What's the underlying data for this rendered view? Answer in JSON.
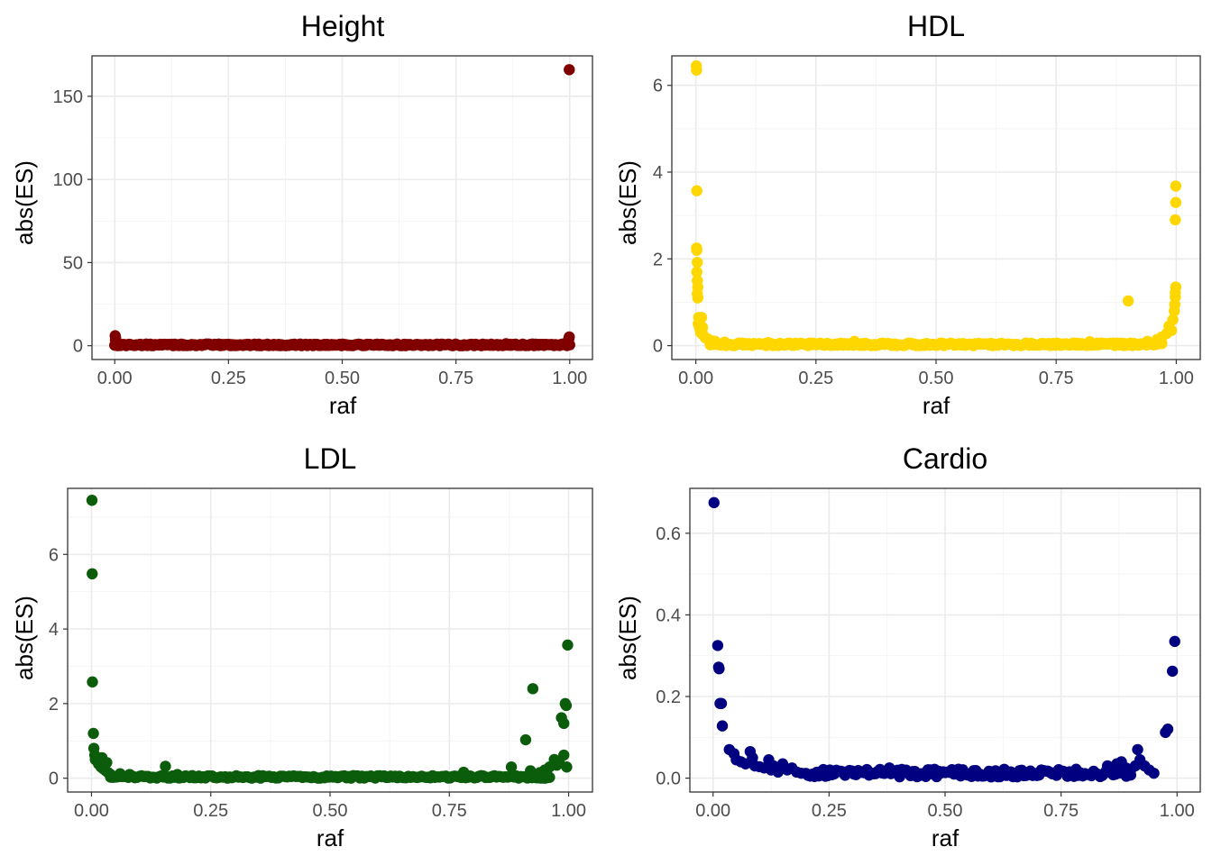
{
  "figure": {
    "xlabel": "raf",
    "ylabel": "abs(ES)"
  },
  "chart_data": [
    {
      "type": "scatter",
      "title": "Height",
      "xlabel": "raf",
      "ylabel": "abs(ES)",
      "color": "#800000",
      "xlim": [
        -0.05,
        1.05
      ],
      "ylim": [
        -8.3,
        174.3
      ],
      "x_ticks": [
        0,
        0.25,
        0.5,
        0.75,
        1
      ],
      "x_tick_labels": [
        "0.00",
        "0.25",
        "0.50",
        "0.75",
        "1.00"
      ],
      "y_ticks": [
        0,
        50,
        100,
        150
      ],
      "y_tick_labels": [
        "0",
        "50",
        "100",
        "150"
      ],
      "grid": true,
      "legend": "none",
      "dense_band": {
        "x_range": [
          0.0,
          1.0
        ],
        "y_range": [
          0,
          1.0
        ],
        "count": 320
      },
      "points": [
        [
          0.999,
          166
        ],
        [
          0.001,
          6.0
        ],
        [
          0.002,
          4.6
        ],
        [
          0.0015,
          3.4
        ],
        [
          0.003,
          2.4
        ],
        [
          0.004,
          1.8
        ],
        [
          0.006,
          1.3
        ],
        [
          0.999,
          5.3
        ],
        [
          0.998,
          4.1
        ],
        [
          0.997,
          3.2
        ],
        [
          0.996,
          2.3
        ],
        [
          0.994,
          1.6
        ],
        [
          0.99,
          1.1
        ],
        [
          0.86,
          1.2
        ],
        [
          0.5,
          0.9
        ],
        [
          0.35,
          0.8
        ]
      ]
    },
    {
      "type": "scatter",
      "title": "HDL",
      "xlabel": "raf",
      "ylabel": "abs(ES)",
      "color": "#FFD700",
      "xlim": [
        -0.05,
        1.05
      ],
      "ylim": [
        -0.32,
        6.68
      ],
      "x_ticks": [
        0,
        0.25,
        0.5,
        0.75,
        1
      ],
      "x_tick_labels": [
        "0.00",
        "0.25",
        "0.50",
        "0.75",
        "1.00"
      ],
      "y_ticks": [
        0,
        2,
        4,
        6
      ],
      "y_tick_labels": [
        "0",
        "2",
        "4",
        "6"
      ],
      "grid": true,
      "legend": "none",
      "dense_band": {
        "x_range": [
          0.03,
          0.97
        ],
        "y_range": [
          0,
          0.06
        ],
        "count": 260
      },
      "points": [
        [
          0.001,
          6.45
        ],
        [
          0.0015,
          6.35
        ],
        [
          0.002,
          3.57
        ],
        [
          0.0015,
          2.25
        ],
        [
          0.002,
          2.2
        ],
        [
          0.003,
          1.92
        ],
        [
          0.002,
          1.7
        ],
        [
          0.003,
          1.5
        ],
        [
          0.004,
          1.35
        ],
        [
          0.003,
          1.2
        ],
        [
          0.004,
          1.1
        ],
        [
          0.006,
          0.65
        ],
        [
          0.012,
          0.65
        ],
        [
          0.005,
          0.5
        ],
        [
          0.008,
          0.4
        ],
        [
          0.014,
          0.42
        ],
        [
          0.01,
          0.3
        ],
        [
          0.015,
          0.25
        ],
        [
          0.02,
          0.18
        ],
        [
          0.025,
          0.15
        ],
        [
          0.03,
          0.12
        ],
        [
          0.04,
          0.1
        ],
        [
          0.06,
          0.08
        ],
        [
          0.09,
          0.06
        ],
        [
          0.15,
          0.07
        ],
        [
          0.33,
          0.1
        ],
        [
          0.82,
          0.09
        ],
        [
          0.9,
          1.03
        ],
        [
          0.94,
          0.1
        ],
        [
          0.96,
          0.14
        ],
        [
          0.97,
          0.2
        ],
        [
          0.98,
          0.28
        ],
        [
          0.99,
          0.35
        ],
        [
          0.985,
          0.45
        ],
        [
          0.993,
          0.6
        ],
        [
          0.996,
          0.8
        ],
        [
          0.997,
          0.95
        ],
        [
          0.998,
          1.12
        ],
        [
          0.998,
          1.22
        ],
        [
          0.999,
          1.35
        ],
        [
          0.998,
          2.9
        ],
        [
          0.999,
          3.3
        ],
        [
          0.999,
          3.68
        ]
      ]
    },
    {
      "type": "scatter",
      "title": "LDL",
      "xlabel": "raf",
      "ylabel": "abs(ES)",
      "color": "#0B5D0B",
      "xlim": [
        -0.05,
        1.05
      ],
      "ylim": [
        -0.37,
        7.77
      ],
      "x_ticks": [
        0,
        0.25,
        0.5,
        0.75,
        1
      ],
      "x_tick_labels": [
        "0.00",
        "0.25",
        "0.50",
        "0.75",
        "1.00"
      ],
      "y_ticks": [
        0,
        2,
        4,
        6
      ],
      "y_tick_labels": [
        "0",
        "2",
        "4",
        "6"
      ],
      "grid": true,
      "legend": "none",
      "dense_band": {
        "x_range": [
          0.04,
          0.96
        ],
        "y_range": [
          0,
          0.07
        ],
        "count": 200
      },
      "points": [
        [
          0.001,
          7.45
        ],
        [
          0.0015,
          5.48
        ],
        [
          0.002,
          2.58
        ],
        [
          0.004,
          1.2
        ],
        [
          0.005,
          0.8
        ],
        [
          0.007,
          0.62
        ],
        [
          0.008,
          0.5
        ],
        [
          0.012,
          0.45
        ],
        [
          0.015,
          0.38
        ],
        [
          0.02,
          0.3
        ],
        [
          0.022,
          0.55
        ],
        [
          0.025,
          0.25
        ],
        [
          0.03,
          0.2
        ],
        [
          0.032,
          0.42
        ],
        [
          0.035,
          0.15
        ],
        [
          0.04,
          0.1
        ],
        [
          0.06,
          0.12
        ],
        [
          0.08,
          0.1
        ],
        [
          0.155,
          0.32
        ],
        [
          0.18,
          0.1
        ],
        [
          0.35,
          0.07
        ],
        [
          0.78,
          0.16
        ],
        [
          0.88,
          0.3
        ],
        [
          0.91,
          1.03
        ],
        [
          0.92,
          0.2
        ],
        [
          0.925,
          2.4
        ],
        [
          0.94,
          0.15
        ],
        [
          0.95,
          0.22
        ],
        [
          0.96,
          0.3
        ],
        [
          0.97,
          0.5
        ],
        [
          0.975,
          0.35
        ],
        [
          0.98,
          0.45
        ],
        [
          0.985,
          1.62
        ],
        [
          0.99,
          1.47
        ],
        [
          0.99,
          0.62
        ],
        [
          0.993,
          2.0
        ],
        [
          0.995,
          1.95
        ],
        [
          0.996,
          0.3
        ],
        [
          0.998,
          3.57
        ]
      ]
    },
    {
      "type": "scatter",
      "title": "Cardio",
      "xlabel": "raf",
      "ylabel": "abs(ES)",
      "color": "#000080",
      "xlim": [
        -0.05,
        1.05
      ],
      "ylim": [
        -0.034,
        0.71
      ],
      "x_ticks": [
        0,
        0.25,
        0.5,
        0.75,
        1
      ],
      "x_tick_labels": [
        "0.00",
        "0.25",
        "0.50",
        "0.75",
        "1.00"
      ],
      "y_ticks": [
        0,
        0.2,
        0.4,
        0.6
      ],
      "y_tick_labels": [
        "0.0",
        "0.2",
        "0.4",
        "0.6"
      ],
      "grid": true,
      "legend": "none",
      "dense_band": {
        "x_range": [
          0.2,
          0.9
        ],
        "y_range": [
          0.003,
          0.022
        ],
        "count": 150
      },
      "points": [
        [
          0.002,
          0.675
        ],
        [
          0.01,
          0.325
        ],
        [
          0.012,
          0.272
        ],
        [
          0.013,
          0.268
        ],
        [
          0.015,
          0.183
        ],
        [
          0.018,
          0.183
        ],
        [
          0.02,
          0.128
        ],
        [
          0.035,
          0.07
        ],
        [
          0.045,
          0.06
        ],
        [
          0.05,
          0.045
        ],
        [
          0.06,
          0.04
        ],
        [
          0.07,
          0.035
        ],
        [
          0.08,
          0.065
        ],
        [
          0.085,
          0.05
        ],
        [
          0.09,
          0.03
        ],
        [
          0.1,
          0.028
        ],
        [
          0.11,
          0.025
        ],
        [
          0.12,
          0.045
        ],
        [
          0.125,
          0.02
        ],
        [
          0.13,
          0.03
        ],
        [
          0.14,
          0.015
        ],
        [
          0.15,
          0.035
        ],
        [
          0.16,
          0.02
        ],
        [
          0.17,
          0.025
        ],
        [
          0.18,
          0.015
        ],
        [
          0.19,
          0.012
        ],
        [
          0.38,
          0.025
        ],
        [
          0.85,
          0.03
        ],
        [
          0.87,
          0.035
        ],
        [
          0.88,
          0.04
        ],
        [
          0.89,
          0.025
        ],
        [
          0.9,
          0.02
        ],
        [
          0.91,
          0.03
        ],
        [
          0.915,
          0.07
        ],
        [
          0.92,
          0.045
        ],
        [
          0.93,
          0.03
        ],
        [
          0.94,
          0.02
        ],
        [
          0.95,
          0.012
        ],
        [
          0.975,
          0.112
        ],
        [
          0.98,
          0.12
        ],
        [
          0.99,
          0.262
        ],
        [
          0.995,
          0.335
        ]
      ]
    }
  ]
}
